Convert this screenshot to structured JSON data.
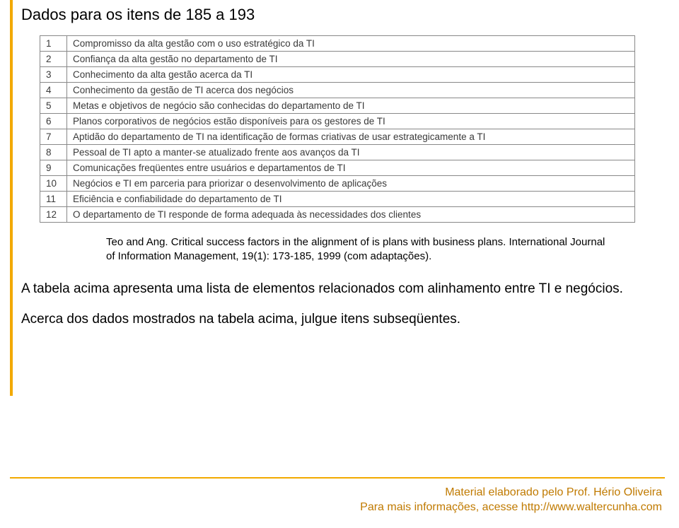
{
  "colors": {
    "accent": "#f2a900",
    "footer_text": "#c07a00",
    "table_border": "#888888",
    "table_text": "#3a3a3a",
    "body_text": "#000000",
    "background": "#ffffff"
  },
  "title": "Dados para os itens de 185 a 193",
  "table": {
    "rows": [
      {
        "n": "1",
        "text": "Compromisso da alta gestão com o uso estratégico da TI"
      },
      {
        "n": "2",
        "text": "Confiança da alta gestão no departamento de TI"
      },
      {
        "n": "3",
        "text": "Conhecimento da alta gestão acerca da TI"
      },
      {
        "n": "4",
        "text": "Conhecimento da gestão de TI acerca dos negócios"
      },
      {
        "n": "5",
        "text": "Metas e objetivos de negócio são conhecidas do departamento de TI"
      },
      {
        "n": "6",
        "text": "Planos corporativos de negócios estão disponíveis para os gestores de TI"
      },
      {
        "n": "7",
        "text": "Aptidão do departamento de TI na identificação de formas criativas de usar estrategicamente a TI"
      },
      {
        "n": "8",
        "text": "Pessoal de TI apto a manter-se atualizado frente aos avanços da TI"
      },
      {
        "n": "9",
        "text": "Comunicações freqüentes entre usuários e departamentos de TI"
      },
      {
        "n": "10",
        "text": "Negócios e TI em parceria para priorizar o desenvolvimento de aplicações"
      },
      {
        "n": "11",
        "text": "Eficiência e confiabilidade do departamento de TI"
      },
      {
        "n": "12",
        "text": "O departamento de TI responde de forma adequada às necessidades dos clientes"
      }
    ]
  },
  "caption": "Teo and Ang. Critical success factors in the alignment of is plans with business plans. International Journal of Information Management, 19(1): 173-185, 1999 (com adaptações).",
  "para1": "A tabela acima apresenta uma lista de elementos relacionados com alinhamento entre TI e negócios.",
  "para2": "Acerca dos dados mostrados na tabela acima, julgue itens subseqüentes.",
  "footer": {
    "line1": "Material elaborado pelo Prof. Hério Oliveira",
    "line2": "Para mais informações, acesse http://www.waltercunha.com"
  }
}
